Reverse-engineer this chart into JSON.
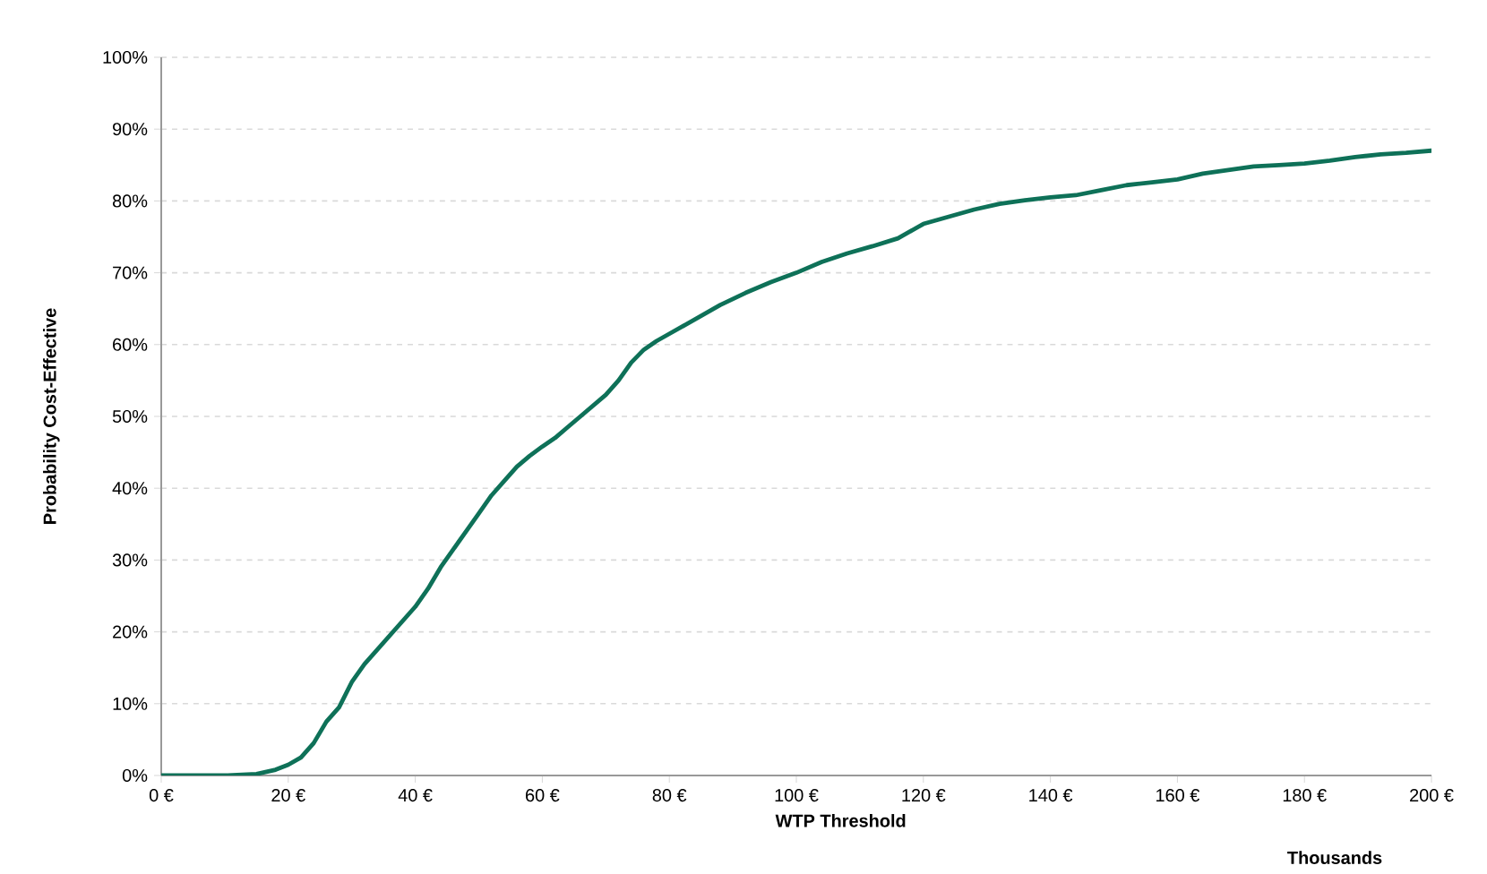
{
  "chart_data": {
    "type": "line",
    "xlabel": "WTP Threshold",
    "ylabel": "Probability Cost-Effective",
    "annotations": [
      "Thousands"
    ],
    "x": [
      0,
      10,
      15,
      18,
      20,
      22,
      24,
      26,
      28,
      30,
      32,
      34,
      36,
      38,
      40,
      42,
      44,
      46,
      48,
      50,
      52,
      54,
      56,
      58,
      60,
      62,
      64,
      66,
      68,
      70,
      72,
      74,
      76,
      78,
      80,
      84,
      88,
      92,
      96,
      100,
      104,
      108,
      112,
      116,
      120,
      124,
      128,
      132,
      136,
      140,
      144,
      148,
      152,
      156,
      160,
      164,
      168,
      172,
      176,
      180,
      184,
      188,
      192,
      196,
      200
    ],
    "series": [
      {
        "color": "#0e7158",
        "values": [
          0,
          0,
          0.2,
          0.8,
          1.5,
          2.5,
          4.5,
          7.5,
          9.5,
          13,
          15.5,
          17.5,
          19.5,
          21.5,
          23.5,
          26,
          29,
          31.5,
          34,
          36.5,
          39,
          41,
          43,
          44.5,
          45.8,
          47,
          48.5,
          50,
          51.5,
          53,
          55,
          57.5,
          59.3,
          60.5,
          61.5,
          63.5,
          65.5,
          67.2,
          68.7,
          70,
          71.5,
          72.7,
          73.7,
          74.8,
          76.8,
          77.8,
          78.8,
          79.6,
          80.1,
          80.5,
          80.8,
          81.5,
          82.2,
          82.6,
          83,
          83.8,
          84.3,
          84.8,
          85,
          85.2,
          85.6,
          86.1,
          86.5,
          86.7,
          87
        ]
      }
    ],
    "xlim": [
      0,
      200
    ],
    "ylim": [
      0,
      100
    ],
    "xticks": [
      {
        "value": 0,
        "label": "0 €"
      },
      {
        "value": 20,
        "label": "20 €"
      },
      {
        "value": 40,
        "label": "40 €"
      },
      {
        "value": 60,
        "label": "60 €"
      },
      {
        "value": 80,
        "label": "80 €"
      },
      {
        "value": 100,
        "label": "100 €"
      },
      {
        "value": 120,
        "label": "120 €"
      },
      {
        "value": 140,
        "label": "140 €"
      },
      {
        "value": 160,
        "label": "160 €"
      },
      {
        "value": 180,
        "label": "180 €"
      },
      {
        "value": 200,
        "label": "200 €"
      }
    ],
    "yticks": [
      {
        "value": 0,
        "label": "0%"
      },
      {
        "value": 10,
        "label": "10%"
      },
      {
        "value": 20,
        "label": "20%"
      },
      {
        "value": 30,
        "label": "30%"
      },
      {
        "value": 40,
        "label": "40%"
      },
      {
        "value": 50,
        "label": "50%"
      },
      {
        "value": 60,
        "label": "60%"
      },
      {
        "value": 70,
        "label": "70%"
      },
      {
        "value": 80,
        "label": "80%"
      },
      {
        "value": 90,
        "label": "90%"
      },
      {
        "value": 100,
        "label": "100%"
      }
    ],
    "grid": "y",
    "marker": "none",
    "line_style": "solid"
  }
}
